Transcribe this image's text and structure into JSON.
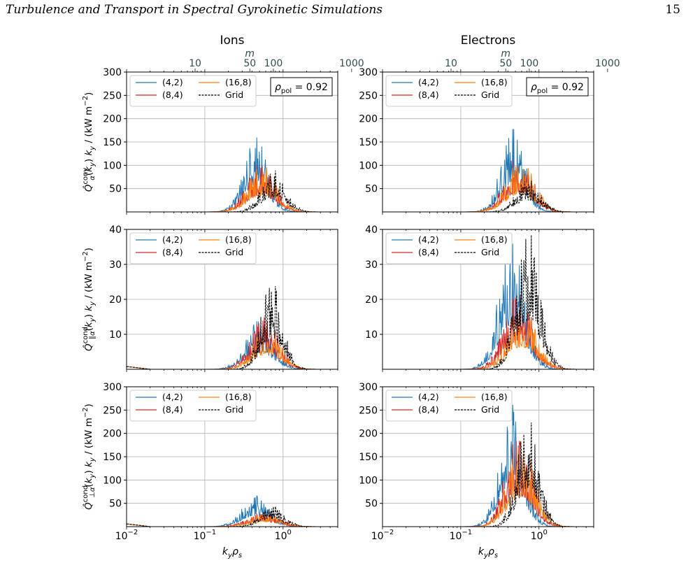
{
  "header": {
    "running_title": "Turbulence and Transport in Spectral Gyrokinetic Simulations",
    "page_number": "15"
  },
  "chart_data": [
    {
      "type": "line",
      "panel": "ions-convective",
      "column_title": "Ions",
      "ylabel": "Q̂_α^conv(k_y) k_y / (kW m⁻²)",
      "ylim": [
        0,
        300
      ],
      "yticks": [
        "300",
        "250",
        "200",
        "150",
        "100",
        "50"
      ],
      "xlim": [
        0.01,
        5
      ],
      "xscale": "log",
      "top_axis": {
        "label": "m",
        "ticks": [
          "10",
          "50",
          "100",
          "1000"
        ]
      },
      "annotation": "ρ_pol = 0.92",
      "legend": [
        "(4,2)",
        "(8,4)",
        "(16,8)",
        "Grid"
      ],
      "series": [
        {
          "name": "(4,2)",
          "peak_x": 0.45,
          "peak_y": 160,
          "width": 0.22,
          "color": "#1f77b4"
        },
        {
          "name": "(8,4)",
          "peak_x": 0.52,
          "peak_y": 105,
          "width": 0.25,
          "color": "#d62728"
        },
        {
          "name": "(16,8)",
          "peak_x": 0.55,
          "peak_y": 100,
          "width": 0.26,
          "color": "#ff7f0e"
        },
        {
          "name": "Grid",
          "peak_x": 0.75,
          "peak_y": 90,
          "width": 0.22,
          "color": "#000000"
        }
      ]
    },
    {
      "type": "line",
      "panel": "electrons-convective",
      "column_title": "Electrons",
      "ylim": [
        0,
        300
      ],
      "yticks": [
        "300",
        "250",
        "200",
        "150",
        "100",
        "50"
      ],
      "xlim": [
        0.01,
        5
      ],
      "xscale": "log",
      "top_axis": {
        "label": "m",
        "ticks": [
          "10",
          "50",
          "100",
          "1000"
        ]
      },
      "annotation": "ρ_pol = 0.92",
      "legend": [
        "(4,2)",
        "(8,4)",
        "(16,8)",
        "Grid"
      ],
      "series": [
        {
          "name": "(4,2)",
          "peak_x": 0.47,
          "peak_y": 178,
          "width": 0.22,
          "color": "#1f77b4"
        },
        {
          "name": "(8,4)",
          "peak_x": 0.55,
          "peak_y": 120,
          "width": 0.25,
          "color": "#d62728"
        },
        {
          "name": "(16,8)",
          "peak_x": 0.58,
          "peak_y": 110,
          "width": 0.26,
          "color": "#ff7f0e"
        },
        {
          "name": "Grid",
          "peak_x": 0.72,
          "peak_y": 70,
          "width": 0.22,
          "color": "#000000"
        }
      ]
    },
    {
      "type": "line",
      "panel": "ions-parallel-conductive",
      "ylabel": "Q̂_∥α^cond(k_y) k_y / (kW m⁻²)",
      "ylim": [
        0,
        40
      ],
      "yticks": [
        "40",
        "30",
        "20",
        "10"
      ],
      "xlim": [
        0.01,
        5
      ],
      "xscale": "log",
      "legend": [
        "(4,2)",
        "(8,4)",
        "(16,8)",
        "Grid"
      ],
      "series": [
        {
          "name": "(4,2)",
          "peak_x": 0.5,
          "peak_y": 14,
          "width": 0.25,
          "color": "#1f77b4"
        },
        {
          "name": "(8,4)",
          "peak_x": 0.58,
          "peak_y": 15,
          "width": 0.25,
          "color": "#d62728"
        },
        {
          "name": "(16,8)",
          "peak_x": 0.62,
          "peak_y": 12,
          "width": 0.25,
          "color": "#ff7f0e"
        },
        {
          "name": "Grid",
          "peak_x": 0.72,
          "peak_y": 25,
          "width": 0.2,
          "color": "#000000"
        }
      ]
    },
    {
      "type": "line",
      "panel": "electrons-parallel-conductive",
      "ylim": [
        0,
        40
      ],
      "yticks": [
        "40",
        "30",
        "20",
        "10"
      ],
      "xlim": [
        0.01,
        5
      ],
      "xscale": "log",
      "legend": [
        "(4,2)",
        "(8,4)",
        "(16,8)",
        "Grid"
      ],
      "series": [
        {
          "name": "(4,2)",
          "peak_x": 0.45,
          "peak_y": 36,
          "width": 0.24,
          "color": "#1f77b4"
        },
        {
          "name": "(8,4)",
          "peak_x": 0.55,
          "peak_y": 22,
          "width": 0.26,
          "color": "#d62728"
        },
        {
          "name": "(16,8)",
          "peak_x": 0.6,
          "peak_y": 18,
          "width": 0.26,
          "color": "#ff7f0e"
        },
        {
          "name": "Grid",
          "peak_x": 0.72,
          "peak_y": 40,
          "width": 0.22,
          "color": "#000000"
        }
      ]
    },
    {
      "type": "line",
      "panel": "ions-perpendicular-conductive",
      "ylabel": "Q̂_⊥α^cond(k_y) k_y / (kW m⁻²)",
      "xlabel": "k_y ρ_s",
      "ylim": [
        0,
        300
      ],
      "yticks": [
        "300",
        "250",
        "200",
        "150",
        "100",
        "50"
      ],
      "xlim": [
        0.01,
        5
      ],
      "xscale": "log",
      "xticks": [
        "10^-2",
        "10^-1",
        "10^0"
      ],
      "legend": [
        "(4,2)",
        "(8,4)",
        "(16,8)",
        "Grid"
      ],
      "series": [
        {
          "name": "(4,2)",
          "peak_x": 0.45,
          "peak_y": 66,
          "width": 0.25,
          "color": "#1f77b4"
        },
        {
          "name": "(8,4)",
          "peak_x": 0.55,
          "peak_y": 30,
          "width": 0.28,
          "color": "#d62728"
        },
        {
          "name": "(16,8)",
          "peak_x": 0.6,
          "peak_y": 28,
          "width": 0.28,
          "color": "#ff7f0e"
        },
        {
          "name": "Grid",
          "peak_x": 0.72,
          "peak_y": 45,
          "width": 0.22,
          "color": "#000000"
        }
      ]
    },
    {
      "type": "line",
      "panel": "electrons-perpendicular-conductive",
      "xlabel": "k_y ρ_s",
      "ylim": [
        0,
        300
      ],
      "yticks": [
        "300",
        "250",
        "200",
        "150",
        "100",
        "50"
      ],
      "xlim": [
        0.01,
        5
      ],
      "xscale": "log",
      "xticks": [
        "10^-2",
        "10^-1",
        "10^0"
      ],
      "legend": [
        "(4,2)",
        "(8,4)",
        "(16,8)",
        "Grid"
      ],
      "series": [
        {
          "name": "(4,2)",
          "peak_x": 0.45,
          "peak_y": 262,
          "width": 0.22,
          "color": "#1f77b4"
        },
        {
          "name": "(8,4)",
          "peak_x": 0.55,
          "peak_y": 195,
          "width": 0.24,
          "color": "#d62728"
        },
        {
          "name": "(16,8)",
          "peak_x": 0.6,
          "peak_y": 180,
          "width": 0.25,
          "color": "#ff7f0e"
        },
        {
          "name": "Grid",
          "peak_x": 0.72,
          "peak_y": 235,
          "width": 0.2,
          "color": "#000000"
        }
      ]
    }
  ]
}
